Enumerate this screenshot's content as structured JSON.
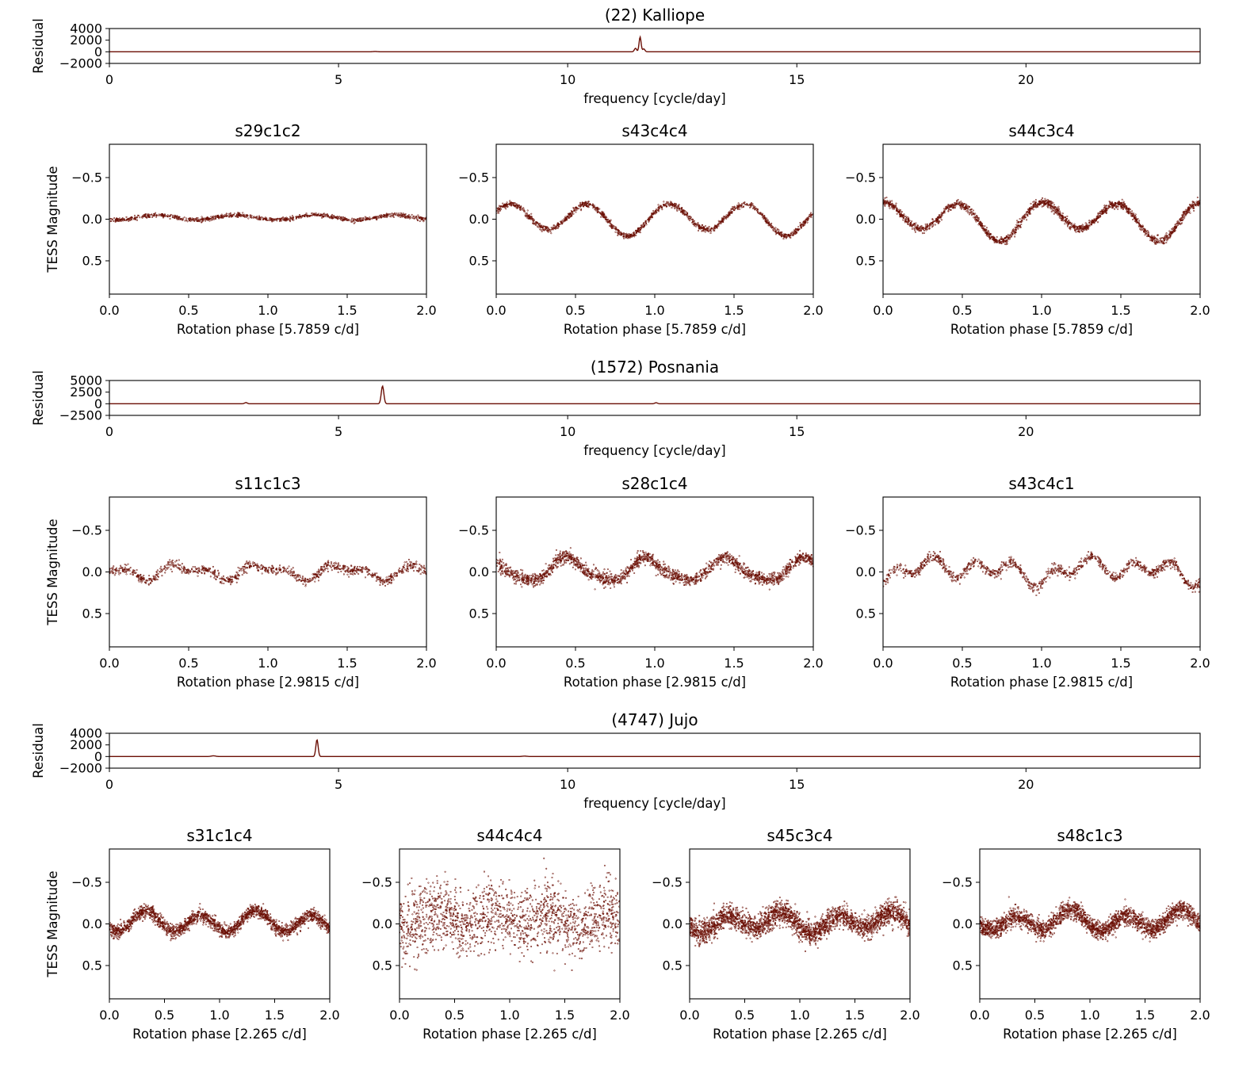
{
  "figure": {
    "data_color": "#6b0f05",
    "background": "#ffffff"
  },
  "chart_data": [
    {
      "id": "p1",
      "type": "line",
      "title": "(22) Kalliope",
      "xlabel": "frequency [cycle/day]",
      "ylabel": "Residual",
      "xlim": [
        0,
        23.8
      ],
      "ylim": [
        -2000,
        4000
      ],
      "xticks": [
        0,
        5,
        10,
        15,
        20
      ],
      "xtick_labels": [
        "0",
        "5",
        "10",
        "15",
        "20"
      ],
      "yticks": [
        4000,
        2000,
        0,
        -2000
      ],
      "ytick_labels": [
        "4000",
        "2000",
        "0",
        "−2000"
      ],
      "series": [
        {
          "peaks": [
            [
              5.8,
              50,
              0.05
            ],
            [
              11.48,
              600,
              0.025
            ],
            [
              11.58,
              2550,
              0.022
            ],
            [
              11.66,
              500,
              0.025
            ]
          ]
        }
      ]
    },
    {
      "id": "p2",
      "type": "scatter",
      "title": "s29c1c2",
      "xlabel": "Rotation phase [5.7859 c/d]",
      "ylabel": "TESS Magnitude",
      "xlim": [
        0,
        2
      ],
      "ylim": [
        0.9,
        -0.9
      ],
      "yinverted": true,
      "xticks": [
        0,
        0.5,
        1,
        1.5,
        2
      ],
      "xtick_labels": [
        "0.0",
        "0.5",
        "1.0",
        "1.5",
        "2.0"
      ],
      "yticks": [
        -0.5,
        0,
        0.5
      ],
      "ytick_labels": [
        "−0.5",
        "0.0",
        "0.5"
      ],
      "series": [
        {
          "harmonics": [
            [
              0,
              -0.02,
              0
            ],
            [
              2,
              -0.03,
              0.3
            ]
          ],
          "scatter": 0.012,
          "n": 900
        }
      ]
    },
    {
      "id": "p3",
      "type": "scatter",
      "title": "s43c4c4",
      "xlabel": "Rotation phase [5.7859 c/d]",
      "ylabel": "",
      "xlim": [
        0,
        2
      ],
      "ylim": [
        0.9,
        -0.9
      ],
      "yinverted": true,
      "xticks": [
        0,
        0.5,
        1,
        1.5,
        2
      ],
      "xtick_labels": [
        "0.0",
        "0.5",
        "1.0",
        "1.5",
        "2.0"
      ],
      "yticks": [
        -0.5,
        0,
        0.5
      ],
      "ytick_labels": [
        "−0.5",
        "0.0",
        "0.5"
      ],
      "series": [
        {
          "harmonics": [
            [
              0,
              -0.01,
              0
            ],
            [
              1,
              0.04,
              0.82
            ],
            [
              2,
              0.17,
              0.33
            ]
          ],
          "scatter": 0.018,
          "n": 1300
        }
      ]
    },
    {
      "id": "p4",
      "type": "scatter",
      "title": "s44c3c4",
      "xlabel": "Rotation phase [5.7859 c/d]",
      "ylabel": "",
      "xlim": [
        0,
        2
      ],
      "ylim": [
        0.9,
        -0.9
      ],
      "yinverted": true,
      "xticks": [
        0,
        0.5,
        1,
        1.5,
        2
      ],
      "xtick_labels": [
        "0.0",
        "0.5",
        "1.0",
        "1.5",
        "2.0"
      ],
      "yticks": [
        -0.5,
        0,
        0.5
      ],
      "ytick_labels": [
        "−0.5",
        "0.0",
        "0.5"
      ],
      "series": [
        {
          "harmonics": [
            [
              0,
              0.0,
              0
            ],
            [
              1,
              0.075,
              0.72
            ],
            [
              2,
              0.19,
              0.24
            ]
          ],
          "scatter": 0.024,
          "n": 1700
        }
      ]
    },
    {
      "id": "p5",
      "type": "line",
      "title": "(1572) Posnania",
      "xlabel": "frequency [cycle/day]",
      "ylabel": "Residual",
      "xlim": [
        0,
        23.8
      ],
      "ylim": [
        -2500,
        5000
      ],
      "xticks": [
        0,
        5,
        10,
        15,
        20
      ],
      "xtick_labels": [
        "0",
        "5",
        "10",
        "15",
        "20"
      ],
      "yticks": [
        5000,
        2500,
        0,
        -2500
      ],
      "ytick_labels": [
        "5000",
        "2500",
        "0",
        "−2500"
      ],
      "series": [
        {
          "peaks": [
            [
              2.98,
              250,
              0.03
            ],
            [
              5.96,
              3800,
              0.028
            ],
            [
              11.93,
              220,
              0.03
            ]
          ]
        }
      ]
    },
    {
      "id": "p6",
      "type": "scatter",
      "title": "s11c1c3",
      "xlabel": "Rotation phase [2.9815 c/d]",
      "ylabel": "TESS Magnitude",
      "xlim": [
        0,
        2
      ],
      "ylim": [
        0.9,
        -0.9
      ],
      "yinverted": true,
      "xticks": [
        0,
        0.5,
        1,
        1.5,
        2
      ],
      "xtick_labels": [
        "0.0",
        "0.5",
        "1.0",
        "1.5",
        "2.0"
      ],
      "yticks": [
        -0.5,
        0,
        0.5
      ],
      "ytick_labels": [
        "−0.5",
        "0.0",
        "0.5"
      ],
      "series": [
        {
          "harmonics": [
            [
              0,
              0.0,
              0
            ],
            [
              2,
              0.07,
              0.22
            ],
            [
              4,
              0.045,
              0.0
            ]
          ],
          "scatter": 0.03,
          "n": 1000
        }
      ]
    },
    {
      "id": "p7",
      "type": "scatter",
      "title": "s28c1c4",
      "xlabel": "Rotation phase [2.9815 c/d]",
      "ylabel": "",
      "xlim": [
        0,
        2
      ],
      "ylim": [
        0.9,
        -0.9
      ],
      "yinverted": true,
      "xticks": [
        0,
        0.5,
        1,
        1.5,
        2
      ],
      "xtick_labels": [
        "0.0",
        "0.5",
        "1.0",
        "1.5",
        "2.0"
      ],
      "yticks": [
        -0.5,
        0,
        0.5
      ],
      "ytick_labels": [
        "−0.5",
        "0.0",
        "0.5"
      ],
      "series": [
        {
          "harmonics": [
            [
              0,
              -0.02,
              0
            ],
            [
              2,
              0.13,
              0.2
            ],
            [
              4,
              0.03,
              0.05
            ]
          ],
          "scatter": 0.04,
          "n": 1900
        }
      ]
    },
    {
      "id": "p8",
      "type": "scatter",
      "title": "s43c4c1",
      "xlabel": "Rotation phase [2.9815 c/d]",
      "ylabel": "",
      "xlim": [
        0,
        2
      ],
      "ylim": [
        0.9,
        -0.9
      ],
      "yinverted": true,
      "xticks": [
        0,
        0.5,
        1,
        1.5,
        2
      ],
      "xtick_labels": [
        "0.0",
        "0.5",
        "1.0",
        "1.5",
        "2.0"
      ],
      "yticks": [
        -0.5,
        0,
        0.5
      ],
      "ytick_labels": [
        "−0.5",
        "0.0",
        "0.5"
      ],
      "series": [
        {
          "harmonics": [
            [
              0,
              -0.02,
              0
            ],
            [
              1,
              0.06,
              0.95
            ],
            [
              2,
              0.07,
              0.0
            ],
            [
              4,
              0.09,
              0.95
            ]
          ],
          "scatter": 0.03,
          "n": 1100
        }
      ]
    },
    {
      "id": "p9",
      "type": "line",
      "title": "(4747) Jujo",
      "xlabel": "frequency [cycle/day]",
      "ylabel": "Residual",
      "xlim": [
        0,
        23.8
      ],
      "ylim": [
        -2000,
        4000
      ],
      "xticks": [
        0,
        5,
        10,
        15,
        20
      ],
      "xtick_labels": [
        "0",
        "5",
        "10",
        "15",
        "20"
      ],
      "yticks": [
        4000,
        2000,
        0,
        -2000
      ],
      "ytick_labels": [
        "4000",
        "2000",
        "0",
        "−2000"
      ],
      "series": [
        {
          "peaks": [
            [
              2.27,
              120,
              0.05
            ],
            [
              4.53,
              2900,
              0.025
            ],
            [
              9.06,
              70,
              0.05
            ]
          ]
        }
      ]
    },
    {
      "id": "p10",
      "type": "scatter",
      "title": "s31c1c4",
      "xlabel": "Rotation phase [2.265 c/d]",
      "ylabel": "TESS Magnitude",
      "xlim": [
        0,
        2
      ],
      "ylim": [
        0.9,
        -0.9
      ],
      "yinverted": true,
      "xticks": [
        0,
        0.5,
        1,
        1.5,
        2
      ],
      "xtick_labels": [
        "0.0",
        "0.5",
        "1.0",
        "1.5",
        "2.0"
      ],
      "yticks": [
        -0.5,
        0,
        0.5
      ],
      "ytick_labels": [
        "−0.5",
        "0.0",
        "0.5"
      ],
      "series": [
        {
          "harmonics": [
            [
              0,
              -0.02,
              0
            ],
            [
              1,
              0.03,
              0.83
            ],
            [
              2,
              0.11,
              0.08
            ]
          ],
          "scatter": 0.04,
          "n": 2000
        }
      ]
    },
    {
      "id": "p11",
      "type": "scatter",
      "title": "s44c4c4",
      "xlabel": "Rotation phase [2.265 c/d]",
      "ylabel": "",
      "xlim": [
        0,
        2
      ],
      "ylim": [
        0.9,
        -0.9
      ],
      "yinverted": true,
      "xticks": [
        0,
        0.5,
        1,
        1.5,
        2
      ],
      "xtick_labels": [
        "0.0",
        "0.5",
        "1.0",
        "1.5",
        "2.0"
      ],
      "yticks": [
        -0.5,
        0,
        0.5
      ],
      "ytick_labels": [
        "−0.5",
        "0.0",
        "0.5"
      ],
      "series": [
        {
          "harmonics": [
            [
              0,
              -0.05,
              0
            ],
            [
              2,
              0.08,
              0.1
            ]
          ],
          "scatter": 0.2,
          "n": 1700
        }
      ]
    },
    {
      "id": "p12",
      "type": "scatter",
      "title": "s45c3c4",
      "xlabel": "Rotation phase [2.265 c/d]",
      "ylabel": "",
      "xlim": [
        0,
        2
      ],
      "ylim": [
        0.9,
        -0.9
      ],
      "yinverted": true,
      "xticks": [
        0,
        0.5,
        1,
        1.5,
        2
      ],
      "xtick_labels": [
        "0.0",
        "0.5",
        "1.0",
        "1.5",
        "2.0"
      ],
      "yticks": [
        -0.5,
        0,
        0.5
      ],
      "ytick_labels": [
        "−0.5",
        "0.0",
        "0.5"
      ],
      "series": [
        {
          "harmonics": [
            [
              0,
              -0.02,
              0
            ],
            [
              1,
              0.04,
              0.2
            ],
            [
              2,
              0.1,
              0.1
            ]
          ],
          "scatter": 0.07,
          "n": 2600
        }
      ]
    },
    {
      "id": "p13",
      "type": "scatter",
      "title": "s48c1c3",
      "xlabel": "Rotation phase [2.265 c/d]",
      "ylabel": "",
      "xlim": [
        0,
        2
      ],
      "ylim": [
        0.9,
        -0.9
      ],
      "yinverted": true,
      "xticks": [
        0,
        0.5,
        1,
        1.5,
        2
      ],
      "xtick_labels": [
        "0.0",
        "0.5",
        "1.0",
        "1.5",
        "2.0"
      ],
      "yticks": [
        -0.5,
        0,
        0.5
      ],
      "ytick_labels": [
        "−0.5",
        "0.0",
        "0.5"
      ],
      "series": [
        {
          "harmonics": [
            [
              0,
              -0.03,
              0
            ],
            [
              1,
              0.04,
              0.3
            ],
            [
              2,
              0.1,
              0.08
            ]
          ],
          "scatter": 0.055,
          "n": 2400
        }
      ]
    }
  ]
}
